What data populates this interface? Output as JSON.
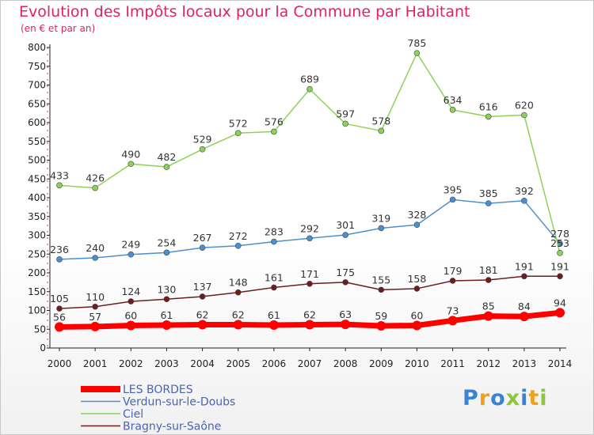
{
  "header": {
    "title": "Evolution des Impôts locaux pour la Commune par Habitant",
    "subtitle": "(en € et par an)"
  },
  "logo": {
    "text": "Proxiti",
    "letters": [
      {
        "ch": "P",
        "color": "#3a82d6"
      },
      {
        "ch": "r",
        "color": "#f0a020"
      },
      {
        "ch": "o",
        "color": "#3a82d6"
      },
      {
        "ch": "x",
        "color": "#8cc63f"
      },
      {
        "ch": "i",
        "color": "#3a82d6"
      },
      {
        "ch": "t",
        "color": "#f0a020"
      },
      {
        "ch": "i",
        "color": "#8cc63f"
      }
    ]
  },
  "chart_data": {
    "type": "line",
    "title": "Evolution des Impôts locaux pour la Commune par Habitant",
    "subtitle": "(en € et par an)",
    "xlabel": "",
    "ylabel": "",
    "x": [
      2000,
      2001,
      2002,
      2003,
      2004,
      2005,
      2006,
      2007,
      2008,
      2009,
      2010,
      2011,
      2012,
      2013,
      2014
    ],
    "ylim": [
      0,
      800
    ],
    "yticks": [
      0,
      50,
      100,
      150,
      200,
      250,
      300,
      350,
      400,
      450,
      500,
      550,
      600,
      650,
      700,
      750,
      800
    ],
    "grid": false,
    "legend_position": "bottom-left",
    "series": [
      {
        "name": "LES BORDES",
        "color": "#ff0000",
        "style": "thick",
        "values": [
          56,
          57,
          60,
          61,
          62,
          62,
          61,
          62,
          63,
          59,
          60,
          73,
          85,
          84,
          94
        ]
      },
      {
        "name": "Verdun-sur-le-Doubs",
        "color": "#4a90d0",
        "style": "thin",
        "values": [
          236,
          240,
          249,
          254,
          267,
          272,
          283,
          292,
          301,
          319,
          328,
          395,
          385,
          392,
          278
        ]
      },
      {
        "name": "Ciel",
        "color": "#8cd25a",
        "style": "thin",
        "values": [
          433,
          426,
          490,
          482,
          529,
          572,
          576,
          689,
          597,
          578,
          785,
          634,
          616,
          620,
          253
        ]
      },
      {
        "name": "Bragny-sur-Saône",
        "color": "#6b1e1e",
        "style": "thin",
        "values": [
          105,
          110,
          124,
          130,
          137,
          148,
          161,
          171,
          175,
          155,
          158,
          179,
          181,
          191,
          191
        ]
      }
    ]
  }
}
